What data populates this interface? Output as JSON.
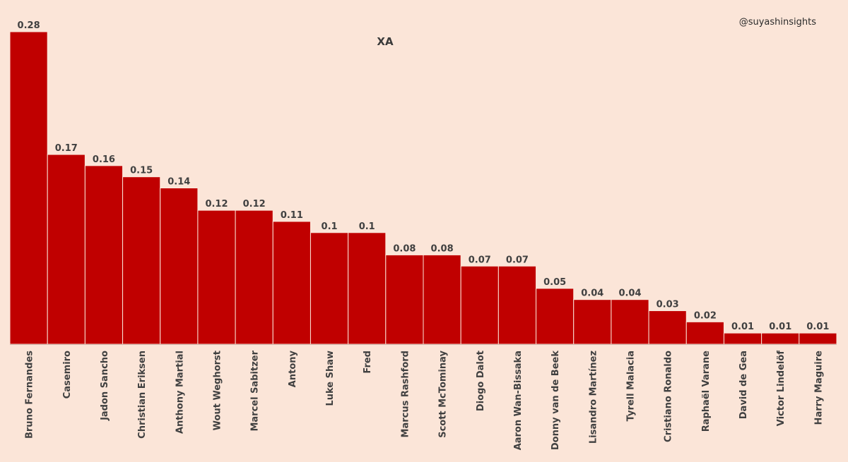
{
  "handle": "@suyashinsights",
  "chart_data": {
    "type": "bar",
    "title": "XA",
    "xlabel": "",
    "ylabel": "",
    "ylim": [
      0,
      0.28
    ],
    "grid": false,
    "bar_color": "#c00000",
    "categories": [
      "Bruno Fernandes",
      "Casemiro",
      "Jadon Sancho",
      "Christian Eriksen",
      "Anthony Martial",
      "Wout Weghorst",
      "Marcel Sabitzer",
      "Antony",
      "Luke Shaw",
      "Fred",
      "Marcus Rashford",
      "Scott McTominay",
      "Diogo Dalot",
      "Aaron Wan-Bissaka",
      "Donny van de Beek",
      "Lisandro Martínez",
      "Tyrell Malacia",
      "Cristiano Ronaldo",
      "Raphaël Varane",
      "David de Gea",
      "Victor Lindelöf",
      "Harry Maguire"
    ],
    "values": [
      0.28,
      0.17,
      0.16,
      0.15,
      0.14,
      0.12,
      0.12,
      0.11,
      0.1,
      0.1,
      0.08,
      0.08,
      0.07,
      0.07,
      0.05,
      0.04,
      0.04,
      0.03,
      0.02,
      0.01,
      0.01,
      0.01
    ],
    "value_labels": [
      "0.28",
      "0.17",
      "0.16",
      "0.15",
      "0.14",
      "0.12",
      "0.12",
      "0.11",
      "0.1",
      "0.1",
      "0.08",
      "0.08",
      "0.07",
      "0.07",
      "0.05",
      "0.04",
      "0.04",
      "0.03",
      "0.02",
      "0.01",
      "0.01",
      "0.01"
    ]
  }
}
